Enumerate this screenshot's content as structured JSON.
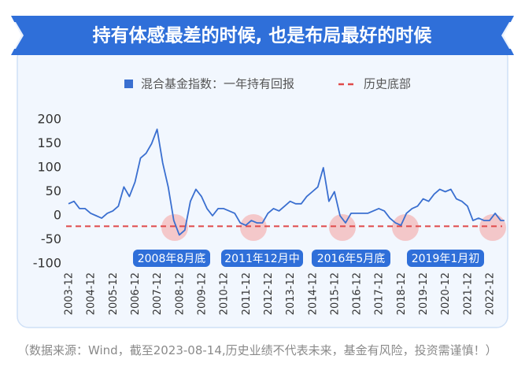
{
  "chart_data": {
    "type": "line",
    "title": "持有体感最差的时候, 也是布局最好的时候",
    "x": [
      "2003-12",
      "2004-03",
      "2004-06",
      "2004-09",
      "2004-12",
      "2005-03",
      "2005-06",
      "2005-09",
      "2005-12",
      "2006-03",
      "2006-06",
      "2006-09",
      "2006-12",
      "2007-03",
      "2007-06",
      "2007-09",
      "2007-12",
      "2008-03",
      "2008-06",
      "2008-09",
      "2008-12",
      "2009-03",
      "2009-06",
      "2009-09",
      "2009-12",
      "2010-03",
      "2010-06",
      "2010-09",
      "2010-12",
      "2011-03",
      "2011-06",
      "2011-09",
      "2011-12",
      "2012-03",
      "2012-06",
      "2012-09",
      "2012-12",
      "2013-03",
      "2013-06",
      "2013-09",
      "2013-12",
      "2014-03",
      "2014-06",
      "2014-09",
      "2014-12",
      "2015-03",
      "2015-06",
      "2015-09",
      "2015-12",
      "2016-03",
      "2016-06",
      "2016-09",
      "2016-12",
      "2017-03",
      "2017-06",
      "2017-09",
      "2017-12",
      "2018-03",
      "2018-06",
      "2018-09",
      "2018-12",
      "2019-03",
      "2019-06",
      "2019-09",
      "2019-12",
      "2020-03",
      "2020-06",
      "2020-09",
      "2020-12",
      "2021-03",
      "2021-06",
      "2021-09",
      "2021-12",
      "2022-03",
      "2022-06",
      "2022-09",
      "2022-12",
      "2023-03",
      "2023-06",
      "2023-08"
    ],
    "series": [
      {
        "name": "混合基金指数：一年持有回报",
        "color": "#3a6fd0",
        "values": [
          25,
          30,
          15,
          15,
          5,
          0,
          -5,
          5,
          10,
          20,
          60,
          40,
          70,
          120,
          130,
          150,
          180,
          110,
          60,
          -10,
          -40,
          -30,
          30,
          55,
          40,
          15,
          0,
          15,
          15,
          10,
          5,
          -15,
          -20,
          -10,
          -15,
          -15,
          5,
          15,
          10,
          20,
          30,
          25,
          25,
          40,
          50,
          60,
          100,
          30,
          50,
          0,
          -15,
          5,
          5,
          5,
          5,
          10,
          15,
          10,
          -5,
          -15,
          -20,
          5,
          15,
          20,
          35,
          30,
          45,
          55,
          50,
          55,
          35,
          30,
          20,
          -10,
          -5,
          -10,
          -10,
          5,
          -10,
          -10
        ]
      }
    ],
    "reference_line": {
      "name": "历史底部",
      "value": -22,
      "color": "#e04a4a"
    },
    "ylim": [
      -100,
      200
    ],
    "yticks": [
      -100,
      -50,
      0,
      50,
      100,
      150,
      200
    ],
    "xticks": [
      "2003-12",
      "2004-12",
      "2005-12",
      "2006-12",
      "2007-12",
      "2008-12",
      "2009-12",
      "2010-12",
      "2011-12",
      "2012-12",
      "2013-12",
      "2014-12",
      "2015-12",
      "2016-12",
      "2017-12",
      "2018-12",
      "2019-12",
      "2020-12",
      "2021-12",
      "2022-12"
    ],
    "annotations": [
      "2008年8月底",
      "2011年12月中",
      "2016年5月底",
      "2019年1月初"
    ],
    "note": "（数据来源：Wind，截至2023-08-14,历史业绩不代表未来，基金有风险，投资需谨慎！）"
  }
}
